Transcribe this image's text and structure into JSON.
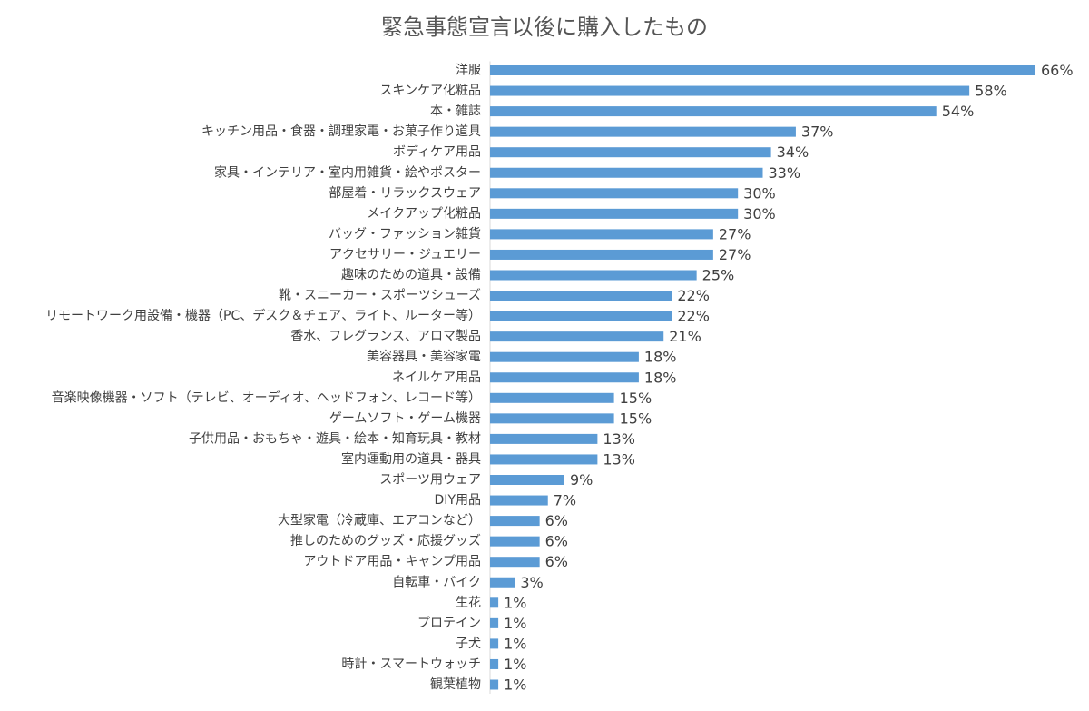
{
  "chart_data": {
    "type": "bar",
    "orientation": "horizontal",
    "title": "緊急事態宣言以後に購入したもの",
    "bar_color": "#5b9bd5",
    "value_suffix": "%",
    "categories": [
      "洋服",
      "スキンケア化粧品",
      "本・雑誌",
      "キッチン用品・食器・調理家電・お菓子作り道具",
      "ボディケア用品",
      "家具・インテリア・室内用雑貨・絵やポスター",
      "部屋着・リラックスウェア",
      "メイクアップ化粧品",
      "バッグ・ファッション雑貨",
      "アクセサリー・ジュエリー",
      "趣味のための道具・設備",
      "靴・スニーカー・スポーツシューズ",
      "リモートワーク用設備・機器（PC、デスク＆チェア、ライト、ルーター等）",
      "香水、フレグランス、アロマ製品",
      "美容器具・美容家電",
      "ネイルケア用品",
      "音楽映像機器・ソフト（テレビ、オーディオ、ヘッドフォン、レコード等）",
      "ゲームソフト・ゲーム機器",
      "子供用品・おもちゃ・遊具・絵本・知育玩具・教材",
      "室内運動用の道具・器具",
      "スポーツ用ウェア",
      "DIY用品",
      "大型家電（冷蔵庫、エアコンなど）",
      "推しのためのグッズ・応援グッズ",
      "アウトドア用品・キャンプ用品",
      "自転車・バイク",
      "生花",
      "プロテイン",
      "子犬",
      "時計・スマートウォッチ",
      "観葉植物"
    ],
    "values": [
      66,
      58,
      54,
      37,
      34,
      33,
      30,
      30,
      27,
      27,
      25,
      22,
      22,
      21,
      18,
      18,
      15,
      15,
      13,
      13,
      9,
      7,
      6,
      6,
      6,
      3,
      1,
      1,
      1,
      1,
      1
    ],
    "xlim": [
      0,
      66
    ]
  }
}
